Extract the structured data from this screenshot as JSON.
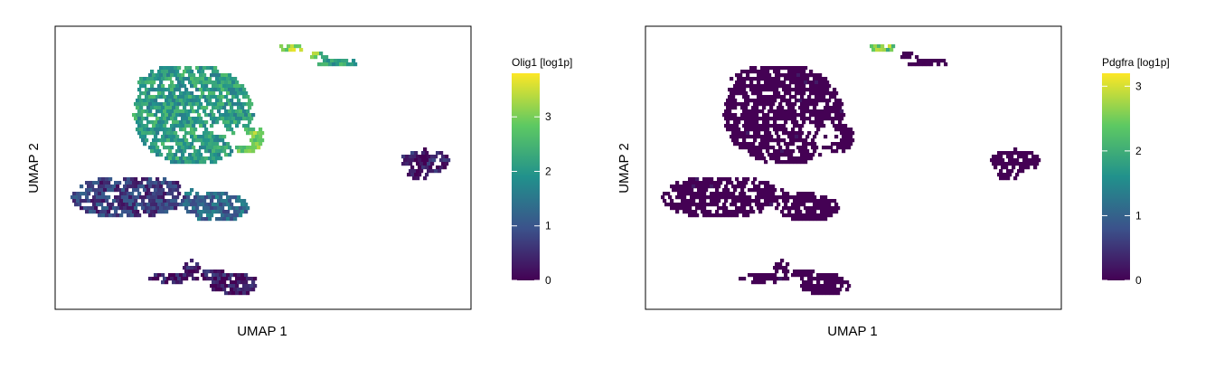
{
  "chart_data": [
    {
      "type": "scatter",
      "subtype": "hexbin-embedding",
      "title": "",
      "xlabel": "UMAP 1",
      "ylabel": "UMAP 2",
      "x_ticks_shown": false,
      "y_ticks_shown": false,
      "grid": false,
      "colorbar": {
        "title": "Olig1 [log1p]",
        "colormap": "viridis",
        "range": [
          0,
          3.8
        ],
        "ticks": [
          0,
          1,
          2,
          3
        ],
        "tick_labels": [
          "0",
          "1",
          "2",
          "3"
        ],
        "stops": [
          "#440154",
          "#3b528b",
          "#21918c",
          "#5ec962",
          "#fde725"
        ]
      },
      "clusters": [
        {
          "name": "upper-left",
          "center_x": -4.7,
          "center_y": 5.4,
          "mean_value": 2.1
        },
        {
          "name": "middle-left",
          "center_x": -6.0,
          "center_y": -1.0,
          "mean_value": 0.7
        },
        {
          "name": "middle-right",
          "center_x": -1.9,
          "center_y": -1.6,
          "mean_value": 1.3
        },
        {
          "name": "bottom",
          "center_x": -3.3,
          "center_y": -7.2,
          "mean_value": 0.25
        },
        {
          "name": "right",
          "center_x": 4.2,
          "center_y": 1.6,
          "mean_value": 0.3
        },
        {
          "name": "top-small",
          "center_x": -0.1,
          "center_y": 10.8,
          "mean_value": 3.2
        }
      ]
    },
    {
      "type": "scatter",
      "subtype": "hexbin-embedding",
      "title": "",
      "xlabel": "UMAP 1",
      "ylabel": "UMAP 2",
      "x_ticks_shown": false,
      "y_ticks_shown": false,
      "grid": false,
      "colorbar": {
        "title": "Pdgfra [log1p]",
        "colormap": "viridis",
        "range": [
          0,
          3.2
        ],
        "ticks": [
          0,
          1,
          2,
          3
        ],
        "tick_labels": [
          "0",
          "1",
          "2",
          "3"
        ],
        "stops": [
          "#440154",
          "#3b528b",
          "#21918c",
          "#5ec962",
          "#fde725"
        ]
      },
      "clusters": [
        {
          "name": "upper-left",
          "center_x": -4.7,
          "center_y": 5.4,
          "mean_value": 0.0
        },
        {
          "name": "middle-left",
          "center_x": -6.0,
          "center_y": -1.0,
          "mean_value": 0.0
        },
        {
          "name": "middle-right",
          "center_x": -1.9,
          "center_y": -1.6,
          "mean_value": 0.0
        },
        {
          "name": "bottom",
          "center_x": -3.3,
          "center_y": -7.2,
          "mean_value": 0.0
        },
        {
          "name": "right",
          "center_x": 4.2,
          "center_y": 1.6,
          "mean_value": 0.0
        },
        {
          "name": "top-small",
          "center_x": -0.1,
          "center_y": 10.8,
          "mean_value": 2.4
        }
      ]
    }
  ]
}
